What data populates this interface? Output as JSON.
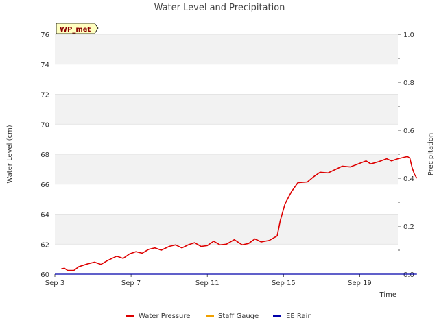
{
  "chart_data": {
    "type": "line",
    "title": "Water Level and Precipitation",
    "site_badge": "WP_met",
    "xlabel": "Time",
    "ylabel": "Water Level (cm)",
    "y2label": "Precipitation",
    "xlim": [
      "2023-09-03",
      "2023-09-21"
    ],
    "ylim": [
      60,
      76
    ],
    "y2lim": [
      0.0,
      1.0
    ],
    "grid": "horizontal bands",
    "legend_position": "bottom",
    "x_ticks": [
      {
        "date": "2023-09-03",
        "label": "Sep 3"
      },
      {
        "date": "2023-09-07",
        "label": "Sep 7"
      },
      {
        "date": "2023-09-11",
        "label": "Sep 11"
      },
      {
        "date": "2023-09-15",
        "label": "Sep 15"
      },
      {
        "date": "2023-09-19",
        "label": "Sep 19"
      }
    ],
    "y_ticks": [
      "60",
      "62",
      "64",
      "66",
      "68",
      "70",
      "72",
      "74",
      "76"
    ],
    "y2_ticks": [
      "0.0",
      "0.2",
      "0.4",
      "0.6",
      "0.8",
      "1.0"
    ],
    "colors": {
      "water_pressure": "#dd0000",
      "staff_gauge": "#f0a000",
      "ee_rain": "#0000aa",
      "band": "#f2f2f2",
      "badge_fill": "#ffffc0"
    },
    "series": [
      {
        "name": "Water Pressure",
        "axis": "left",
        "points": [
          [
            "2023-09-03 08:00",
            60.35
          ],
          [
            "2023-09-03 12:00",
            60.4
          ],
          [
            "2023-09-03 16:00",
            60.25
          ],
          [
            "2023-09-04 00:00",
            60.25
          ],
          [
            "2023-09-04 06:00",
            60.5
          ],
          [
            "2023-09-04 18:00",
            60.7
          ],
          [
            "2023-09-05 02:00",
            60.8
          ],
          [
            "2023-09-05 10:00",
            60.65
          ],
          [
            "2023-09-05 18:00",
            60.9
          ],
          [
            "2023-09-06 06:00",
            61.2
          ],
          [
            "2023-09-06 14:00",
            61.05
          ],
          [
            "2023-09-06 22:00",
            61.35
          ],
          [
            "2023-09-07 06:00",
            61.5
          ],
          [
            "2023-09-07 14:00",
            61.4
          ],
          [
            "2023-09-07 22:00",
            61.65
          ],
          [
            "2023-09-08 06:00",
            61.75
          ],
          [
            "2023-09-08 14:00",
            61.6
          ],
          [
            "2023-09-09 00:00",
            61.85
          ],
          [
            "2023-09-09 08:00",
            61.95
          ],
          [
            "2023-09-09 16:00",
            61.75
          ],
          [
            "2023-09-10 00:00",
            61.95
          ],
          [
            "2023-09-10 08:00",
            62.1
          ],
          [
            "2023-09-10 16:00",
            61.85
          ],
          [
            "2023-09-11 00:00",
            61.9
          ],
          [
            "2023-09-11 08:00",
            62.2
          ],
          [
            "2023-09-11 16:00",
            61.95
          ],
          [
            "2023-09-12 00:00",
            62.0
          ],
          [
            "2023-09-12 10:00",
            62.3
          ],
          [
            "2023-09-12 20:00",
            61.95
          ],
          [
            "2023-09-13 04:00",
            62.05
          ],
          [
            "2023-09-13 12:00",
            62.35
          ],
          [
            "2023-09-13 20:00",
            62.15
          ],
          [
            "2023-09-14 06:00",
            62.25
          ],
          [
            "2023-09-14 16:00",
            62.55
          ],
          [
            "2023-09-14 20:00",
            63.6
          ],
          [
            "2023-09-15 02:00",
            64.7
          ],
          [
            "2023-09-15 10:00",
            65.5
          ],
          [
            "2023-09-15 18:00",
            66.1
          ],
          [
            "2023-09-16 06:00",
            66.15
          ],
          [
            "2023-09-16 14:00",
            66.5
          ],
          [
            "2023-09-16 22:00",
            66.8
          ],
          [
            "2023-09-17 08:00",
            66.75
          ],
          [
            "2023-09-17 16:00",
            66.95
          ],
          [
            "2023-09-18 02:00",
            67.2
          ],
          [
            "2023-09-18 12:00",
            67.15
          ],
          [
            "2023-09-18 22:00",
            67.35
          ],
          [
            "2023-09-19 08:00",
            67.55
          ],
          [
            "2023-09-19 14:00",
            67.35
          ],
          [
            "2023-09-20 00:00",
            67.5
          ],
          [
            "2023-09-20 10:00",
            67.7
          ],
          [
            "2023-09-20 16:00",
            67.55
          ],
          [
            "2023-09-21 00:00",
            67.7
          ],
          [
            "2023-09-21 12:00",
            67.85
          ],
          [
            "2023-09-21 15:00",
            67.75
          ],
          [
            "2023-09-21 18:00",
            67.1
          ],
          [
            "2023-09-21 21:00",
            66.65
          ],
          [
            "2023-09-22 00:00",
            66.4
          ]
        ]
      },
      {
        "name": "Staff Gauge",
        "axis": "left",
        "points": []
      },
      {
        "name": "EE Rain",
        "axis": "right",
        "points": [
          [
            "2023-09-03 00:00",
            0.0
          ],
          [
            "2023-09-22 00:00",
            0.0
          ]
        ]
      }
    ]
  }
}
